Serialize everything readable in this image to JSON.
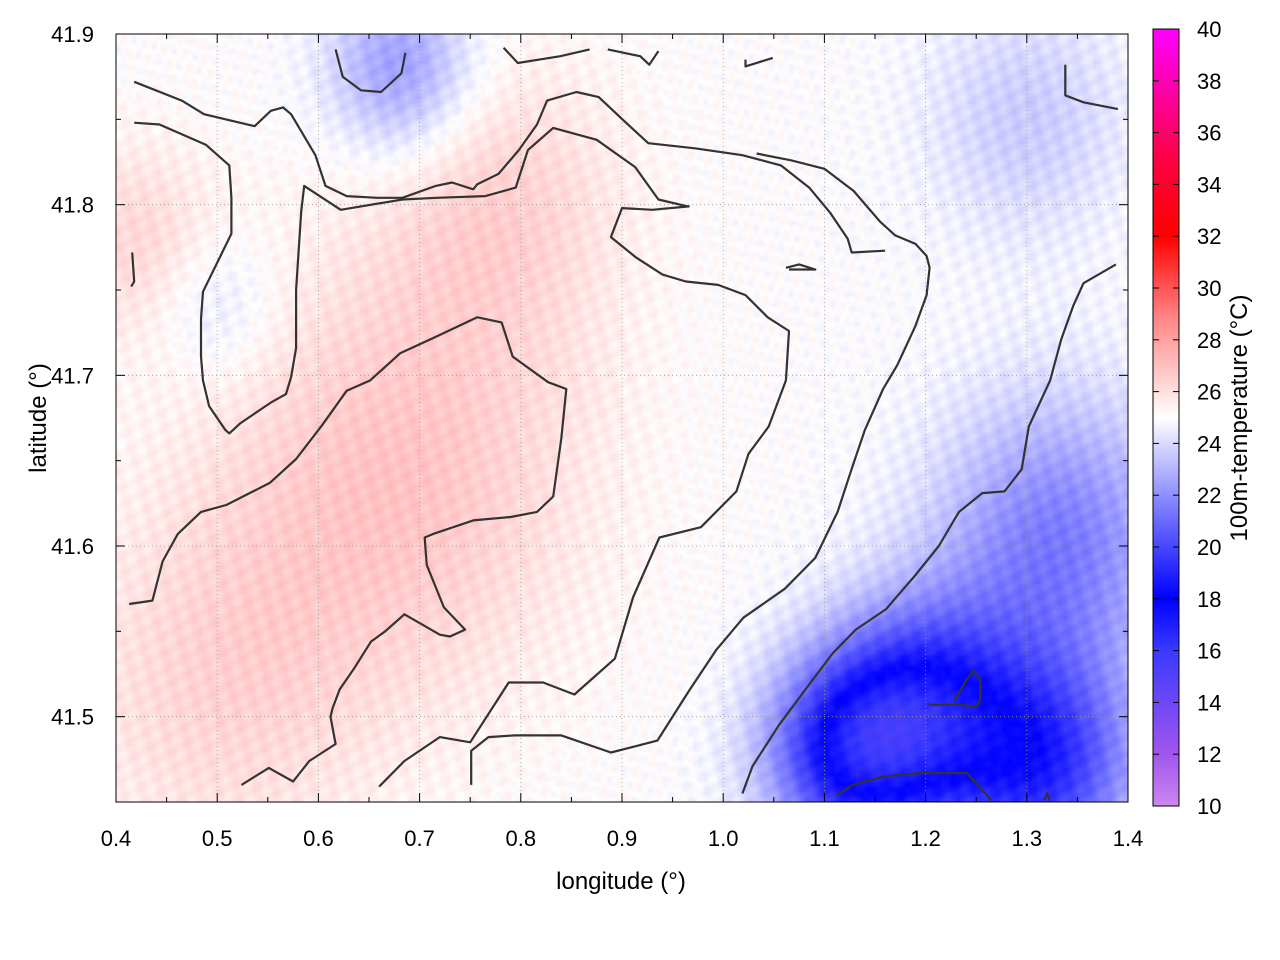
{
  "chart_data": {
    "type": "heatmap",
    "title": "",
    "xlabel": "longitude (°)",
    "ylabel": "latitude (°)",
    "xlim": [
      0.4,
      1.4
    ],
    "ylim": [
      41.45,
      41.9
    ],
    "xticks": [
      "0.4",
      "0.5",
      "0.6",
      "0.7",
      "0.8",
      "0.9",
      "1.0",
      "1.1",
      "1.2",
      "1.3",
      "1.4"
    ],
    "yticks": [
      "41.5",
      "41.6",
      "41.7",
      "41.8",
      "41.9"
    ],
    "grid": true,
    "colorbar": {
      "label": "100m-temperature (°C)",
      "range": [
        10,
        40
      ],
      "ticks": [
        "10",
        "12",
        "14",
        "16",
        "18",
        "20",
        "22",
        "24",
        "26",
        "28",
        "30",
        "32",
        "34",
        "36",
        "38",
        "40"
      ],
      "stops": [
        {
          "value": 10,
          "color": "#cc88ee"
        },
        {
          "value": 12,
          "color": "#a055ee"
        },
        {
          "value": 16,
          "color": "#3a3aff"
        },
        {
          "value": 18,
          "color": "#0000ff"
        },
        {
          "value": 21,
          "color": "#6a6aff"
        },
        {
          "value": 25,
          "color": "#ffffff"
        },
        {
          "value": 29,
          "color": "#ff8080"
        },
        {
          "value": 32,
          "color": "#ff0000"
        },
        {
          "value": 35,
          "color": "#ff0044"
        },
        {
          "value": 40,
          "color": "#ff00ff"
        }
      ]
    },
    "field_hotspots": [
      {
        "lon": 0.68,
        "lat": 41.64,
        "temp": 26.8,
        "spread": 0.18
      },
      {
        "lon": 0.78,
        "lat": 41.8,
        "temp": 26.3,
        "spread": 0.12
      },
      {
        "lon": 0.5,
        "lat": 41.52,
        "temp": 26.2,
        "spread": 0.15
      },
      {
        "lon": 0.42,
        "lat": 41.78,
        "temp": 26.2,
        "spread": 0.08
      },
      {
        "lon": 1.2,
        "lat": 41.5,
        "temp": 18.8,
        "spread": 0.09
      },
      {
        "lon": 1.12,
        "lat": 41.48,
        "temp": 19.3,
        "spread": 0.08
      },
      {
        "lon": 1.32,
        "lat": 41.47,
        "temp": 19.8,
        "spread": 0.09
      },
      {
        "lon": 1.33,
        "lat": 41.6,
        "temp": 21.5,
        "spread": 0.12
      },
      {
        "lon": 0.68,
        "lat": 41.88,
        "temp": 22.2,
        "spread": 0.07
      },
      {
        "lon": 0.5,
        "lat": 41.74,
        "temp": 24.0,
        "spread": 0.06
      },
      {
        "lon": 1.3,
        "lat": 41.85,
        "temp": 23.6,
        "spread": 0.1
      },
      {
        "lon": 0.86,
        "lat": 41.69,
        "temp": 25.1,
        "spread": 0.04
      }
    ],
    "contours": [
      [
        [
          0.418,
          41.872
        ],
        [
          0.465,
          41.861
        ],
        [
          0.487,
          41.853
        ],
        [
          0.537,
          41.846
        ],
        [
          0.553,
          41.855
        ],
        [
          0.565,
          41.857
        ],
        [
          0.573,
          41.853
        ],
        [
          0.597,
          41.829
        ],
        [
          0.607,
          41.811
        ],
        [
          0.628,
          41.805
        ],
        [
          0.658,
          41.804
        ],
        [
          0.683,
          41.804
        ],
        [
          0.716,
          41.811
        ],
        [
          0.732,
          41.813
        ],
        [
          0.753,
          41.809
        ],
        [
          0.757,
          41.812
        ],
        [
          0.778,
          41.818
        ],
        [
          0.798,
          41.832
        ],
        [
          0.816,
          41.847
        ],
        [
          0.826,
          41.861
        ],
        [
          0.855,
          41.866
        ],
        [
          0.877,
          41.863
        ],
        [
          0.904,
          41.848
        ],
        [
          0.926,
          41.836
        ],
        [
          0.972,
          41.833
        ],
        [
          1.019,
          41.829
        ],
        [
          1.057,
          41.823
        ],
        [
          1.085,
          41.81
        ],
        [
          1.106,
          41.795
        ],
        [
          1.123,
          41.78
        ],
        [
          1.127,
          41.772
        ],
        [
          1.16,
          41.773
        ]
      ],
      [
        [
          0.418,
          41.848
        ],
        [
          0.443,
          41.847
        ],
        [
          0.489,
          41.835
        ],
        [
          0.512,
          41.823
        ],
        [
          0.514,
          41.804
        ],
        [
          0.514,
          41.783
        ],
        [
          0.486,
          41.749
        ],
        [
          0.484,
          41.733
        ],
        [
          0.484,
          41.711
        ],
        [
          0.486,
          41.697
        ],
        [
          0.492,
          41.682
        ],
        [
          0.508,
          41.668
        ],
        [
          0.512,
          41.666
        ],
        [
          0.523,
          41.672
        ],
        [
          0.553,
          41.684
        ],
        [
          0.568,
          41.689
        ],
        [
          0.573,
          41.699
        ],
        [
          0.578,
          41.716
        ],
        [
          0.578,
          41.75
        ],
        [
          0.583,
          41.796
        ],
        [
          0.586,
          41.811
        ],
        [
          0.622,
          41.797
        ],
        [
          0.683,
          41.803
        ],
        [
          0.717,
          41.804
        ],
        [
          0.765,
          41.805
        ],
        [
          0.795,
          41.81
        ],
        [
          0.807,
          41.832
        ],
        [
          0.832,
          41.845
        ],
        [
          0.875,
          41.838
        ],
        [
          0.913,
          41.822
        ],
        [
          0.936,
          41.803
        ],
        [
          0.965,
          41.799
        ],
        [
          0.966,
          41.799
        ],
        [
          0.93,
          41.797
        ],
        [
          0.9,
          41.798
        ],
        [
          0.889,
          41.781
        ],
        [
          0.914,
          41.769
        ],
        [
          0.94,
          41.759
        ],
        [
          0.963,
          41.755
        ],
        [
          0.995,
          41.753
        ],
        [
          1.022,
          41.747
        ],
        [
          1.044,
          41.734
        ],
        [
          1.065,
          41.726
        ],
        [
          1.062,
          41.697
        ],
        [
          1.045,
          41.67
        ],
        [
          1.025,
          41.654
        ],
        [
          1.013,
          41.632
        ],
        [
          0.978,
          41.611
        ],
        [
          0.937,
          41.605
        ],
        [
          0.911,
          41.57
        ],
        [
          0.893,
          41.534
        ],
        [
          0.853,
          41.513
        ],
        [
          0.822,
          41.52
        ],
        [
          0.788,
          41.52
        ],
        [
          0.763,
          41.497
        ],
        [
          0.75,
          41.485
        ],
        [
          0.72,
          41.488
        ],
        [
          0.685,
          41.474
        ],
        [
          0.66,
          41.459
        ]
      ],
      [
        [
          0.413,
          41.566
        ],
        [
          0.436,
          41.568
        ],
        [
          0.446,
          41.591
        ],
        [
          0.461,
          41.607
        ],
        [
          0.484,
          41.62
        ],
        [
          0.509,
          41.624
        ],
        [
          0.552,
          41.637
        ],
        [
          0.578,
          41.651
        ],
        [
          0.604,
          41.671
        ],
        [
          0.628,
          41.691
        ],
        [
          0.651,
          41.697
        ],
        [
          0.681,
          41.713
        ],
        [
          0.714,
          41.722
        ],
        [
          0.757,
          41.734
        ],
        [
          0.781,
          41.731
        ],
        [
          0.792,
          41.711
        ],
        [
          0.827,
          41.696
        ],
        [
          0.845,
          41.692
        ],
        [
          0.84,
          41.663
        ],
        [
          0.832,
          41.629
        ],
        [
          0.816,
          41.62
        ],
        [
          0.79,
          41.617
        ],
        [
          0.753,
          41.615
        ],
        [
          0.713,
          41.607
        ],
        [
          0.705,
          41.605
        ],
        [
          0.707,
          41.589
        ],
        [
          0.724,
          41.564
        ],
        [
          0.745,
          41.551
        ],
        [
          0.73,
          41.547
        ],
        [
          0.72,
          41.548
        ],
        [
          0.685,
          41.56
        ],
        [
          0.666,
          41.55
        ],
        [
          0.652,
          41.544
        ],
        [
          0.635,
          41.528
        ],
        [
          0.621,
          41.516
        ],
        [
          0.614,
          41.505
        ],
        [
          0.612,
          41.5
        ],
        [
          0.617,
          41.484
        ],
        [
          0.591,
          41.474
        ],
        [
          0.575,
          41.462
        ],
        [
          0.551,
          41.47
        ],
        [
          0.524,
          41.46
        ]
      ],
      [
        [
          0.751,
          41.46
        ],
        [
          0.751,
          41.48
        ],
        [
          0.768,
          41.488
        ],
        [
          0.794,
          41.489
        ],
        [
          0.84,
          41.489
        ],
        [
          0.889,
          41.479
        ],
        [
          0.935,
          41.486
        ],
        [
          0.966,
          41.515
        ],
        [
          0.993,
          41.539
        ],
        [
          1.02,
          41.558
        ],
        [
          1.061,
          41.575
        ],
        [
          1.091,
          41.593
        ],
        [
          1.113,
          41.62
        ],
        [
          1.128,
          41.647
        ],
        [
          1.14,
          41.668
        ],
        [
          1.158,
          41.692
        ],
        [
          1.172,
          41.706
        ],
        [
          1.19,
          41.729
        ],
        [
          1.201,
          41.747
        ],
        [
          1.204,
          41.763
        ],
        [
          1.201,
          41.77
        ],
        [
          1.19,
          41.777
        ],
        [
          1.17,
          41.782
        ],
        [
          1.155,
          41.79
        ],
        [
          1.142,
          41.799
        ],
        [
          1.129,
          41.808
        ],
        [
          1.1,
          41.821
        ],
        [
          1.067,
          41.826
        ],
        [
          1.033,
          41.83
        ]
      ],
      [
        [
          1.019,
          41.455
        ],
        [
          1.029,
          41.471
        ],
        [
          1.055,
          41.495
        ],
        [
          1.08,
          41.515
        ],
        [
          1.108,
          41.537
        ],
        [
          1.131,
          41.551
        ],
        [
          1.161,
          41.563
        ],
        [
          1.19,
          41.583
        ],
        [
          1.213,
          41.6
        ],
        [
          1.229,
          41.616
        ],
        [
          1.233,
          41.62
        ],
        [
          1.256,
          41.631
        ],
        [
          1.278,
          41.632
        ],
        [
          1.295,
          41.645
        ],
        [
          1.302,
          41.67
        ],
        [
          1.323,
          41.697
        ],
        [
          1.334,
          41.721
        ],
        [
          1.346,
          41.741
        ],
        [
          1.356,
          41.754
        ],
        [
          1.388,
          41.765
        ]
      ],
      [
        [
          0.617,
          41.891
        ],
        [
          0.624,
          41.875
        ],
        [
          0.642,
          41.867
        ],
        [
          0.662,
          41.866
        ],
        [
          0.682,
          41.877
        ],
        [
          0.686,
          41.889
        ]
      ],
      [
        [
          0.783,
          41.892
        ],
        [
          0.797,
          41.883
        ],
        [
          0.839,
          41.887
        ],
        [
          0.868,
          41.891
        ]
      ],
      [
        [
          0.886,
          41.891
        ],
        [
          0.918,
          41.887
        ],
        [
          0.927,
          41.882
        ],
        [
          0.936,
          41.89
        ]
      ],
      [
        [
          1.022,
          41.885
        ],
        [
          1.022,
          41.881
        ],
        [
          1.049,
          41.886
        ]
      ],
      [
        [
          1.338,
          41.882
        ],
        [
          1.338,
          41.864
        ],
        [
          1.356,
          41.86
        ],
        [
          1.39,
          41.856
        ]
      ],
      [
        [
          0.416,
          41.772
        ],
        [
          0.418,
          41.755
        ],
        [
          0.415,
          41.752
        ]
      ],
      [
        [
          1.062,
          41.763
        ],
        [
          1.075,
          41.765
        ],
        [
          1.091,
          41.762
        ],
        [
          1.065,
          41.762
        ]
      ],
      [
        [
          1.203,
          41.507
        ],
        [
          1.232,
          41.507
        ],
        [
          1.25,
          41.506
        ],
        [
          1.254,
          41.51
        ],
        [
          1.254,
          41.522
        ],
        [
          1.247,
          41.527
        ],
        [
          1.24,
          41.521
        ],
        [
          1.228,
          41.509
        ]
      ],
      [
        [
          1.112,
          41.454
        ],
        [
          1.128,
          41.46
        ],
        [
          1.159,
          41.465
        ],
        [
          1.195,
          41.467
        ],
        [
          1.241,
          41.467
        ],
        [
          1.265,
          41.451
        ]
      ],
      [
        [
          1.317,
          41.451
        ],
        [
          1.32,
          41.455
        ],
        [
          1.323,
          41.451
        ]
      ]
    ]
  }
}
